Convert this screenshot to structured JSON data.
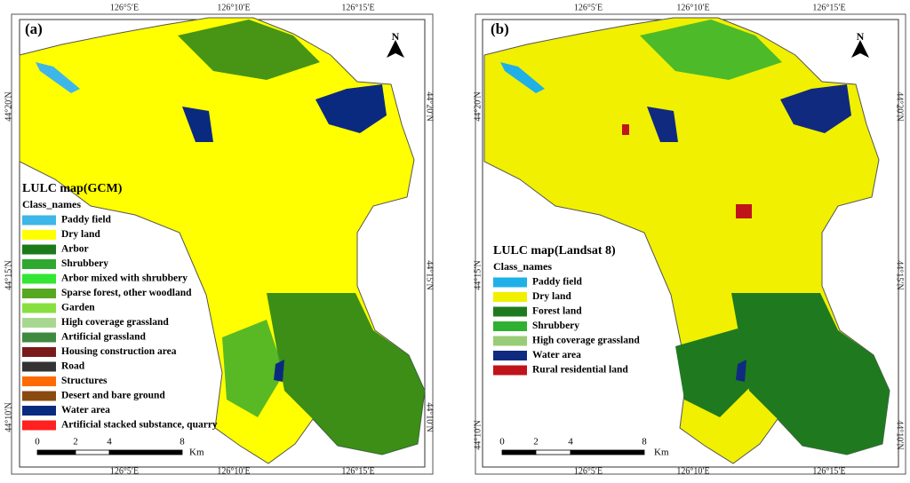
{
  "panels": [
    {
      "label": "(a)",
      "top_ticks": [
        "126°5′E",
        "126°10′E",
        "126°15′E"
      ],
      "bottom_ticks": [
        "126°5′E",
        "126°10′E",
        "126°15′E"
      ],
      "left_ticks": [
        "44°20′N",
        "44°15′N",
        "44°10′N"
      ],
      "right_ticks": [
        "44°20′N",
        "44°15′N",
        "44°10′N"
      ],
      "north": "N",
      "legend": {
        "title": "LULC map(GCM)",
        "subtitle": "Class_names",
        "items": [
          {
            "name": "Paddy field",
            "color": "#3eb6e8"
          },
          {
            "name": "Dry land",
            "color": "#ffff00"
          },
          {
            "name": "Arbor",
            "color": "#1a7a1a"
          },
          {
            "name": "Shrubbery",
            "color": "#2ea82e"
          },
          {
            "name": "Arbor mixed with shrubbery",
            "color": "#33e633"
          },
          {
            "name": "Sparse forest, other woodland",
            "color": "#55a820"
          },
          {
            "name": "Garden",
            "color": "#88e040"
          },
          {
            "name": "High coverage grassland",
            "color": "#a8d890"
          },
          {
            "name": "Artificial grassland",
            "color": "#3f8a3f"
          },
          {
            "name": "Housing construction area",
            "color": "#7a1a1a"
          },
          {
            "name": "Road",
            "color": "#333333"
          },
          {
            "name": "Structures",
            "color": "#ff6a00"
          },
          {
            "name": "Desert and bare ground",
            "color": "#8a4a10"
          },
          {
            "name": "Water area",
            "color": "#0a2a80"
          },
          {
            "name": "Artificial stacked substance, quarry",
            "color": "#ff2020"
          }
        ]
      },
      "scale": {
        "ticks": [
          0,
          2,
          4,
          8
        ],
        "unit": "Km"
      }
    },
    {
      "label": "(b)",
      "top_ticks": [
        "126°5′E",
        "126°10′E",
        "126°15′E"
      ],
      "bottom_ticks": [
        "126°5′E",
        "126°10′E",
        "126°15′E"
      ],
      "left_ticks": [
        "44°20′N",
        "44°15′N",
        "44°10′N"
      ],
      "right_ticks": [
        "44°20′N",
        "44°15′N",
        "44°10′N"
      ],
      "north": "N",
      "legend": {
        "title": "LULC map(Landsat 8)",
        "subtitle": "Class_names",
        "items": [
          {
            "name": "Paddy field",
            "color": "#1fb0e8"
          },
          {
            "name": "Dry land",
            "color": "#f0f000"
          },
          {
            "name": "Forest land",
            "color": "#1f7a1f"
          },
          {
            "name": "Shrubbery",
            "color": "#30b030"
          },
          {
            "name": "High coverage grassland",
            "color": "#99cc77"
          },
          {
            "name": "Water area",
            "color": "#102a80"
          },
          {
            "name": "Rural residential land",
            "color": "#c0141a"
          }
        ]
      },
      "scale": {
        "ticks": [
          0,
          2,
          4,
          8
        ],
        "unit": "Km"
      }
    }
  ]
}
